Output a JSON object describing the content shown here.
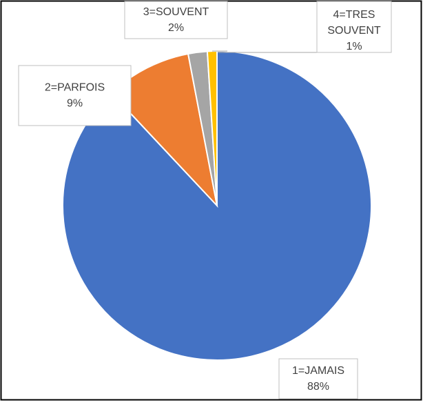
{
  "chart_data": {
    "type": "pie",
    "categories": [
      "1=JAMAIS",
      "2=PARFOIS",
      "3=SOUVENT",
      "4=TRES SOUVENT"
    ],
    "values": [
      88,
      9,
      2,
      1
    ],
    "value_labels": [
      "88%",
      "9%",
      "2%",
      "1%"
    ],
    "colors": [
      "#4472c4",
      "#ed7d31",
      "#a5a5a5",
      "#ffc000"
    ]
  }
}
